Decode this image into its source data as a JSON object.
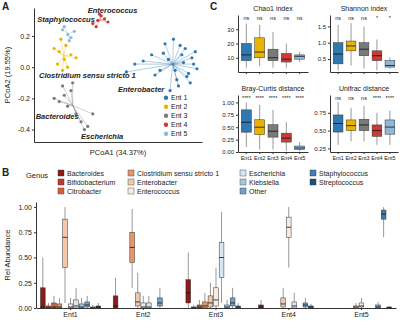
{
  "chart_data": [
    {
      "type": "scatter",
      "marker": "circle",
      "xlabel": "PCoA1 (34.37%)",
      "ylabel": "PCoA2 (19.55%)",
      "xlim": [
        -0.5,
        0.5
      ],
      "ylim": [
        -0.48,
        0.38
      ],
      "yticks": [
        0.2,
        {
          "value": 0,
          "label": "0.0"
        },
        -0.2,
        -0.4
      ],
      "tick_labels": "y",
      "legend": "bottom-right",
      "series": [
        {
          "name": "Ent 1",
          "color": "#2f78b0",
          "x": [
            0.45,
            0.42,
            0.38,
            0.47,
            0.4,
            0.35,
            0.3,
            0.44,
            0.36,
            0.28,
            0.41,
            0.33,
            0.25,
            0.2,
            0.46,
            0.39,
            0.31,
            0.15,
            0.43,
            0.37,
            0.27,
            0.22,
            0.1,
            0.05,
            0.34
          ],
          "values": [
            0.02,
            -0.04,
            0.08,
            -0.01,
            0.12,
            -0.08,
            0.05,
            0.06,
            -0.12,
            0.15,
            -0.06,
            0.18,
            -0.02,
            0.08,
            0.1,
            0.03,
            -0.15,
            0.04,
            -0.1,
            0.14,
            0.09,
            -0.05,
            0.02,
            -0.03,
            -0.02
          ]
        },
        {
          "name": "Ent 2",
          "color": "#e8b400",
          "x": [
            -0.35,
            -0.32,
            -0.38,
            -0.3,
            -0.34,
            -0.28,
            -0.36,
            -0.31,
            -0.25,
            -0.33
          ],
          "values": [
            0.1,
            0.05,
            0.12,
            0.0,
            0.18,
            0.08,
            0.02,
            0.14,
            0.06,
            -0.02
          ]
        },
        {
          "name": "Ent 3",
          "color": "#7a7a7a",
          "x": [
            -0.32,
            -0.35,
            -0.28,
            -0.3,
            -0.38,
            -0.25,
            -0.22,
            -0.2,
            -0.18,
            -0.33,
            -0.27,
            -0.15
          ],
          "values": [
            -0.18,
            -0.22,
            -0.15,
            -0.25,
            -0.2,
            -0.3,
            -0.35,
            -0.4,
            -0.38,
            -0.12,
            -0.1,
            -0.3
          ]
        },
        {
          "name": "Ent 4",
          "color": "#cc3b33",
          "x": [
            -0.12,
            -0.1,
            -0.15,
            -0.08,
            -0.13,
            -0.06,
            -0.11
          ],
          "values": [
            0.3,
            0.33,
            0.28,
            0.31,
            0.26,
            0.29,
            0.34
          ]
        },
        {
          "name": "Ent 5",
          "color": "#8db8d9",
          "x": [
            -0.3,
            -0.33,
            -0.28,
            -0.26,
            -0.32,
            -0.29
          ],
          "values": [
            0.21,
            0.24,
            0.19,
            0.23,
            0.26,
            0.17
          ]
        }
      ],
      "annotations": [
        {
          "text": "A"
        },
        {
          "text": "Enterococcus",
          "x": -0.18,
          "y": 0.35
        },
        {
          "text": "Staphylococcus",
          "x": -0.48,
          "y": 0.29
        },
        {
          "text": "Clostridium sensu stricto 1",
          "x": -0.47,
          "y": -0.07
        },
        {
          "text": "Bacteroides",
          "x": -0.49,
          "y": -0.33
        },
        {
          "text": "Escherichia",
          "x": -0.22,
          "y": -0.46
        },
        {
          "text": "Enterobacter",
          "x": 0.0,
          "y": -0.16
        }
      ]
    },
    {
      "type": "box",
      "ylabel": "Rel Abundance",
      "categories": [
        "Ent1",
        "Ent2",
        "Ent3",
        "Ent4",
        "Ent5"
      ],
      "ylim": [
        0,
        1.05
      ],
      "yticks": [
        {
          "value": 0,
          "label": "0.00"
        },
        0.25,
        {
          "value": 0.5,
          "label": "0.50"
        },
        0.75,
        {
          "value": 1,
          "label": "1.00"
        }
      ],
      "legend": "top",
      "legend_title": "Genus",
      "annotations": [
        {
          "text": "B"
        }
      ],
      "series": [
        {
          "name": "Bacteroides",
          "color": "#8b1a1a",
          "values": [
            {
              "min": 0,
              "q1": 0,
              "median": 0.01,
              "q3": 0.2,
              "max": 0.5
            },
            {
              "min": 0,
              "q1": 0,
              "median": 0.02,
              "q3": 0.12,
              "max": 0.3
            },
            {
              "min": 0,
              "q1": 0.05,
              "median": 0.15,
              "q3": 0.28,
              "max": 0.55
            },
            {
              "min": 0,
              "q1": 0,
              "median": 0.01,
              "q3": 0.03,
              "max": 0.08
            },
            null
          ]
        },
        {
          "name": "Bifidobacterium",
          "color": "#c0392b",
          "values": [
            {
              "min": 0,
              "q1": 0,
              "median": 0,
              "q3": 0.02,
              "max": 0.05
            },
            null,
            {
              "min": 0,
              "q1": 0,
              "median": 0,
              "q3": 0.01,
              "max": 0.03
            },
            null,
            null
          ]
        },
        {
          "name": "Citrobacter",
          "color": "#d9603b",
          "values": [
            {
              "min": 0,
              "q1": 0,
              "median": 0.01,
              "q3": 0.05,
              "max": 0.12
            },
            null,
            {
              "min": 0,
              "q1": 0,
              "median": 0.01,
              "q3": 0.03,
              "max": 0.08
            },
            null,
            null
          ]
        },
        {
          "name": "Clostridium sensu stricto 1",
          "color": "#e8956b",
          "values": [
            {
              "min": 0,
              "q1": 0,
              "median": 0.01,
              "q3": 0.04,
              "max": 0.1
            },
            {
              "min": 0.2,
              "q1": 0.45,
              "median": 0.6,
              "q3": 0.75,
              "max": 0.98
            },
            {
              "min": 0,
              "q1": 0,
              "median": 0.02,
              "q3": 0.06,
              "max": 0.15
            },
            null,
            null
          ]
        },
        {
          "name": "Enterobacter",
          "color": "#f4c7a8",
          "values": [
            {
              "min": 0.05,
              "q1": 0.4,
              "median": 0.7,
              "q3": 0.88,
              "max": 1
            },
            {
              "min": 0,
              "q1": 0.02,
              "median": 0.06,
              "q3": 0.15,
              "max": 0.35
            },
            {
              "min": 0,
              "q1": 0.01,
              "median": 0.05,
              "q3": 0.12,
              "max": 0.25
            },
            {
              "min": 0,
              "q1": 0.01,
              "median": 0.04,
              "q3": 0.1,
              "max": 0.2
            },
            {
              "min": 0,
              "q1": 0,
              "median": 0.01,
              "q3": 0.02,
              "max": 0.05
            }
          ]
        },
        {
          "name": "Enterococcus",
          "color": "#f7ece4",
          "values": [
            {
              "min": 0,
              "q1": 0,
              "median": 0.01,
              "q3": 0.04,
              "max": 0.1
            },
            {
              "min": 0,
              "q1": 0,
              "median": 0.01,
              "q3": 0.05,
              "max": 0.12
            },
            {
              "min": 0,
              "q1": 0.02,
              "median": 0.08,
              "q3": 0.2,
              "max": 0.4
            },
            {
              "min": 0.4,
              "q1": 0.7,
              "median": 0.8,
              "q3": 0.9,
              "max": 1
            },
            {
              "min": 0,
              "q1": 0.01,
              "median": 0.02,
              "q3": 0.05,
              "max": 0.1
            }
          ]
        },
        {
          "name": "Escherichia",
          "color": "#d6e6f2",
          "values": [
            {
              "min": 0,
              "q1": 0,
              "median": 0.02,
              "q3": 0.08,
              "max": 0.2
            },
            {
              "min": 0,
              "q1": 0,
              "median": 0.01,
              "q3": 0.05,
              "max": 0.12
            },
            {
              "min": 0.05,
              "q1": 0.3,
              "median": 0.5,
              "q3": 0.65,
              "max": 0.95
            },
            {
              "min": 0,
              "q1": 0,
              "median": 0.02,
              "q3": 0.06,
              "max": 0.15
            },
            null
          ]
        },
        {
          "name": "Klebsiella",
          "color": "#a6c8e0",
          "values": [
            {
              "min": 0,
              "q1": 0,
              "median": 0.01,
              "q3": 0.04,
              "max": 0.1
            },
            null,
            {
              "min": 0,
              "q1": 0,
              "median": 0.01,
              "q3": 0.03,
              "max": 0.08
            },
            null,
            null
          ]
        },
        {
          "name": "Other",
          "color": "#6fa3cc",
          "values": [
            {
              "min": 0,
              "q1": 0.01,
              "median": 0.03,
              "q3": 0.06,
              "max": 0.12
            },
            {
              "min": 0,
              "q1": 0.02,
              "median": 0.05,
              "q3": 0.1,
              "max": 0.2
            },
            {
              "min": 0,
              "q1": 0.02,
              "median": 0.05,
              "q3": 0.1,
              "max": 0.2
            },
            {
              "min": 0,
              "q1": 0.01,
              "median": 0.03,
              "q3": 0.05,
              "max": 0.1
            },
            {
              "min": 0,
              "q1": 0,
              "median": 0.01,
              "q3": 0.03,
              "max": 0.06
            }
          ]
        },
        {
          "name": "Staphylococcus",
          "color": "#3d7fb5",
          "values": [
            {
              "min": 0,
              "q1": 0,
              "median": 0,
              "q3": 0.01,
              "max": 0.03
            },
            null,
            {
              "min": 0,
              "q1": 0,
              "median": 0.01,
              "q3": 0.02,
              "max": 0.05
            },
            {
              "min": 0,
              "q1": 0,
              "median": 0.01,
              "q3": 0.02,
              "max": 0.04
            },
            {
              "min": 0.7,
              "q1": 0.88,
              "median": 0.93,
              "q3": 0.97,
              "max": 1
            }
          ]
        },
        {
          "name": "Streptococcus",
          "color": "#1f4e79",
          "values": [
            {
              "min": 0,
              "q1": 0,
              "median": 0.01,
              "q3": 0.02,
              "max": 0.05
            },
            null,
            null,
            null,
            {
              "min": 0,
              "q1": 0,
              "median": 0,
              "q3": 0.01,
              "max": 0.02
            }
          ]
        }
      ]
    },
    {
      "type": "box",
      "title": "Chao1 index",
      "categories": [
        "Ent1",
        "Ent2",
        "Ent3",
        "Ent4",
        "Ent5"
      ],
      "colors": [
        "#2f78b0",
        "#e8b400",
        "#7a7a7a",
        "#cc3b33",
        "#8db8d9"
      ],
      "ylim": [
        0,
        40
      ],
      "yticks": [
        10,
        20,
        30
      ],
      "tick_labels": "y",
      "annotations": [
        {
          "text": "C"
        }
      ],
      "values": [
        {
          "min": 3,
          "q1": 8,
          "median": 12,
          "q3": 20,
          "max": 34
        },
        {
          "min": 4,
          "q1": 10,
          "median": 14,
          "q3": 24,
          "max": 33
        },
        {
          "min": 3,
          "q1": 8,
          "median": 10,
          "q3": 16,
          "max": 28
        },
        {
          "min": 3,
          "q1": 7,
          "median": 9,
          "q3": 13,
          "max": 20
        },
        {
          "min": 7,
          "q1": 9,
          "median": 11,
          "q3": 12,
          "max": 14
        }
      ],
      "significance": [
        "ns",
        "ns",
        "ns",
        "ns",
        "ns"
      ]
    },
    {
      "type": "box",
      "title": "Shannon index",
      "categories": [
        "Ent1",
        "Ent2",
        "Ent3",
        "Ent4",
        "Ent5"
      ],
      "colors": [
        "#2f78b0",
        "#e8b400",
        "#7a7a7a",
        "#cc3b33",
        "#8db8d9"
      ],
      "ylim": [
        0.1,
        1.85
      ],
      "yticks": [
        0.5,
        {
          "value": 1,
          "label": "1.0"
        },
        1.5
      ],
      "tick_labels": "y",
      "values": [
        {
          "min": 0.15,
          "q1": 0.35,
          "median": 0.65,
          "q3": 1.0,
          "max": 1.55
        },
        {
          "min": 0.3,
          "q1": 0.75,
          "median": 0.9,
          "q3": 1.05,
          "max": 1.6
        },
        {
          "min": 0.2,
          "q1": 0.6,
          "median": 0.8,
          "q3": 1.0,
          "max": 1.5
        },
        {
          "min": 0.15,
          "q1": 0.45,
          "median": 0.6,
          "q3": 0.75,
          "max": 1.1
        },
        {
          "min": 0.2,
          "q1": 0.25,
          "median": 0.3,
          "q3": 0.45,
          "max": 0.55
        }
      ],
      "significance": [
        "ns",
        "ns",
        "ns",
        "*",
        "*"
      ]
    },
    {
      "type": "box",
      "title": "Bray-Curtis distance",
      "categories": [
        "Ent1",
        "Ent2",
        "Ent3",
        "Ent4",
        "Ent5"
      ],
      "colors": [
        "#2f78b0",
        "#e8b400",
        "#7a7a7a",
        "#cc3b33",
        "#8db8d9"
      ],
      "ylim": [
        0,
        1.15
      ],
      "yticks": [
        {
          "value": 0,
          "label": "0.00"
        },
        0.25,
        {
          "value": 0.5,
          "label": "0.50"
        },
        0.75,
        {
          "value": 1,
          "label": "1.00"
        }
      ],
      "values": [
        {
          "min": 0.1,
          "q1": 0.4,
          "median": 0.6,
          "q3": 0.85,
          "max": 1.0
        },
        {
          "min": 0.05,
          "q1": 0.35,
          "median": 0.5,
          "q3": 0.65,
          "max": 0.95
        },
        {
          "min": 0.05,
          "q1": 0.3,
          "median": 0.42,
          "q3": 0.55,
          "max": 0.85
        },
        {
          "min": 0.02,
          "q1": 0.2,
          "median": 0.28,
          "q3": 0.38,
          "max": 0.6
        },
        {
          "min": 0.02,
          "q1": 0.05,
          "median": 0.08,
          "q3": 0.12,
          "max": 0.2
        }
      ],
      "significance": [
        "****",
        "****",
        "****",
        "****",
        "****"
      ]
    },
    {
      "type": "box",
      "title": "Unifrac distance",
      "categories": [
        "Ent1",
        "Ent2",
        "Ent3",
        "Ent4",
        "Ent5"
      ],
      "colors": [
        "#2f78b0",
        "#e8b400",
        "#7a7a7a",
        "#cc3b33",
        "#8db8d9"
      ],
      "ylim": [
        0.2,
        1.0
      ],
      "yticks": [
        0.25,
        {
          "value": 0.5,
          "label": "0.50"
        },
        0.75
      ],
      "values": [
        {
          "min": 0.3,
          "q1": 0.48,
          "median": 0.6,
          "q3": 0.72,
          "max": 0.9
        },
        {
          "min": 0.35,
          "q1": 0.5,
          "median": 0.57,
          "q3": 0.65,
          "max": 0.82
        },
        {
          "min": 0.35,
          "q1": 0.5,
          "median": 0.58,
          "q3": 0.66,
          "max": 0.85
        },
        {
          "min": 0.3,
          "q1": 0.42,
          "median": 0.5,
          "q3": 0.58,
          "max": 0.75
        },
        {
          "min": 0.3,
          "q1": 0.45,
          "median": 0.55,
          "q3": 0.65,
          "max": 0.78
        }
      ],
      "significance": [
        "ns",
        "ns",
        "ns",
        "****",
        "****"
      ]
    }
  ]
}
